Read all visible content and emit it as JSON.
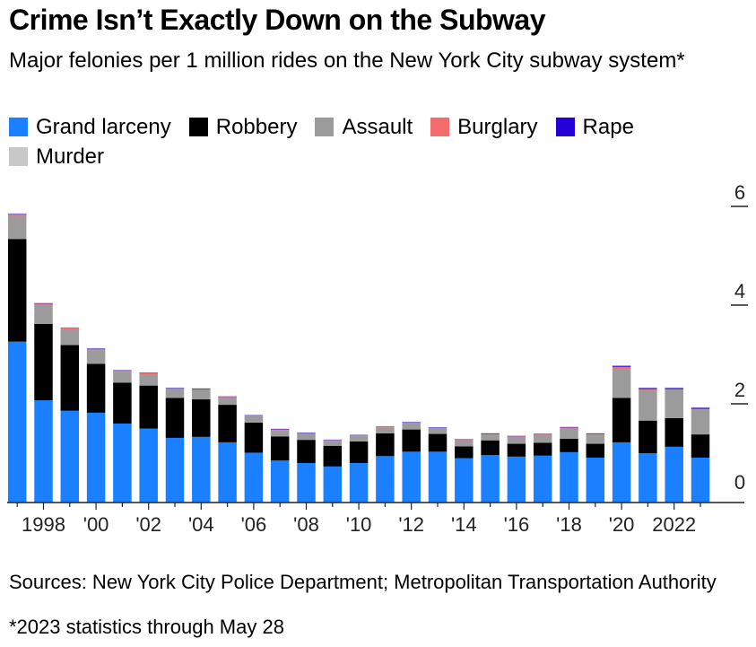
{
  "chart_data": {
    "type": "bar",
    "stacked": true,
    "title": "Crime Isn’t Exactly Down on the Subway",
    "subtitle": "Major felonies per 1 million rides on the New York City subway system*",
    "categories": [
      1997,
      1998,
      1999,
      2000,
      2001,
      2002,
      2003,
      2004,
      2005,
      2006,
      2007,
      2008,
      2009,
      2010,
      2011,
      2012,
      2013,
      2014,
      2015,
      2016,
      2017,
      2018,
      2019,
      2020,
      2021,
      2022,
      2023
    ],
    "x_tick_labels": [
      {
        "year": 1998,
        "label": "1998"
      },
      {
        "year": 2000,
        "label": "'00"
      },
      {
        "year": 2002,
        "label": "'02"
      },
      {
        "year": 2004,
        "label": "'04"
      },
      {
        "year": 2006,
        "label": "'06"
      },
      {
        "year": 2008,
        "label": "'08"
      },
      {
        "year": 2010,
        "label": "'10"
      },
      {
        "year": 2012,
        "label": "'12"
      },
      {
        "year": 2014,
        "label": "'14"
      },
      {
        "year": 2016,
        "label": "'16"
      },
      {
        "year": 2018,
        "label": "'18"
      },
      {
        "year": 2020,
        "label": "'20"
      },
      {
        "year": 2022,
        "label": "2022"
      }
    ],
    "y_ticks": [
      0,
      2,
      4,
      6
    ],
    "ylim": [
      0,
      6
    ],
    "y_axis_position": "right",
    "grid": false,
    "legend_position": "top-left",
    "series": [
      {
        "name": "Grand larceny",
        "color": "#1a80ff",
        "values": [
          3.26,
          2.07,
          1.86,
          1.82,
          1.6,
          1.5,
          1.31,
          1.33,
          1.22,
          1.01,
          0.85,
          0.8,
          0.73,
          0.8,
          0.94,
          1.03,
          1.03,
          0.9,
          0.96,
          0.93,
          0.95,
          1.02,
          0.91,
          1.22,
          1.0,
          1.13,
          0.91
        ]
      },
      {
        "name": "Robbery",
        "color": "#000000",
        "values": [
          2.08,
          1.55,
          1.33,
          0.99,
          0.83,
          0.87,
          0.81,
          0.76,
          0.76,
          0.61,
          0.49,
          0.47,
          0.42,
          0.44,
          0.46,
          0.45,
          0.36,
          0.24,
          0.3,
          0.26,
          0.26,
          0.27,
          0.28,
          0.9,
          0.66,
          0.58,
          0.47
        ]
      },
      {
        "name": "Assault",
        "color": "#9b9b9b",
        "values": [
          0.47,
          0.38,
          0.32,
          0.28,
          0.22,
          0.23,
          0.18,
          0.2,
          0.15,
          0.13,
          0.13,
          0.12,
          0.1,
          0.11,
          0.12,
          0.13,
          0.11,
          0.12,
          0.12,
          0.14,
          0.16,
          0.22,
          0.19,
          0.59,
          0.62,
          0.58,
          0.51
        ]
      },
      {
        "name": "Burglary",
        "color": "#f36b6b",
        "values": [
          0.03,
          0.03,
          0.02,
          0.02,
          0.02,
          0.02,
          0.01,
          0.01,
          0.01,
          0.01,
          0.01,
          0.01,
          0.01,
          0.01,
          0.01,
          0.01,
          0.01,
          0.01,
          0.01,
          0.01,
          0.01,
          0.01,
          0.01,
          0.04,
          0.02,
          0.01,
          0.01
        ]
      },
      {
        "name": "Rape",
        "color": "#2500d8",
        "values": [
          0.01,
          0.01,
          0.01,
          0.01,
          0.01,
          0.01,
          0.01,
          0.01,
          0.01,
          0.01,
          0.01,
          0.01,
          0.01,
          0.01,
          0.01,
          0.01,
          0.01,
          0.01,
          0.01,
          0.01,
          0.01,
          0.01,
          0.01,
          0.02,
          0.02,
          0.02,
          0.02
        ]
      },
      {
        "name": "Murder",
        "color": "#c8c8c8",
        "values": [
          0.01,
          0.01,
          0.01,
          0.01,
          0.01,
          0.01,
          0.01,
          0.01,
          0.01,
          0.01,
          0.01,
          0.01,
          0.01,
          0.01,
          0.01,
          0.01,
          0.01,
          0.01,
          0.01,
          0.01,
          0.01,
          0.01,
          0.01,
          0.01,
          0.01,
          0.01,
          0.01
        ]
      }
    ]
  },
  "source": "Sources: New York City Police Department; Metropolitan Transportation Authority",
  "footnote": "*2023 statistics through May 28"
}
